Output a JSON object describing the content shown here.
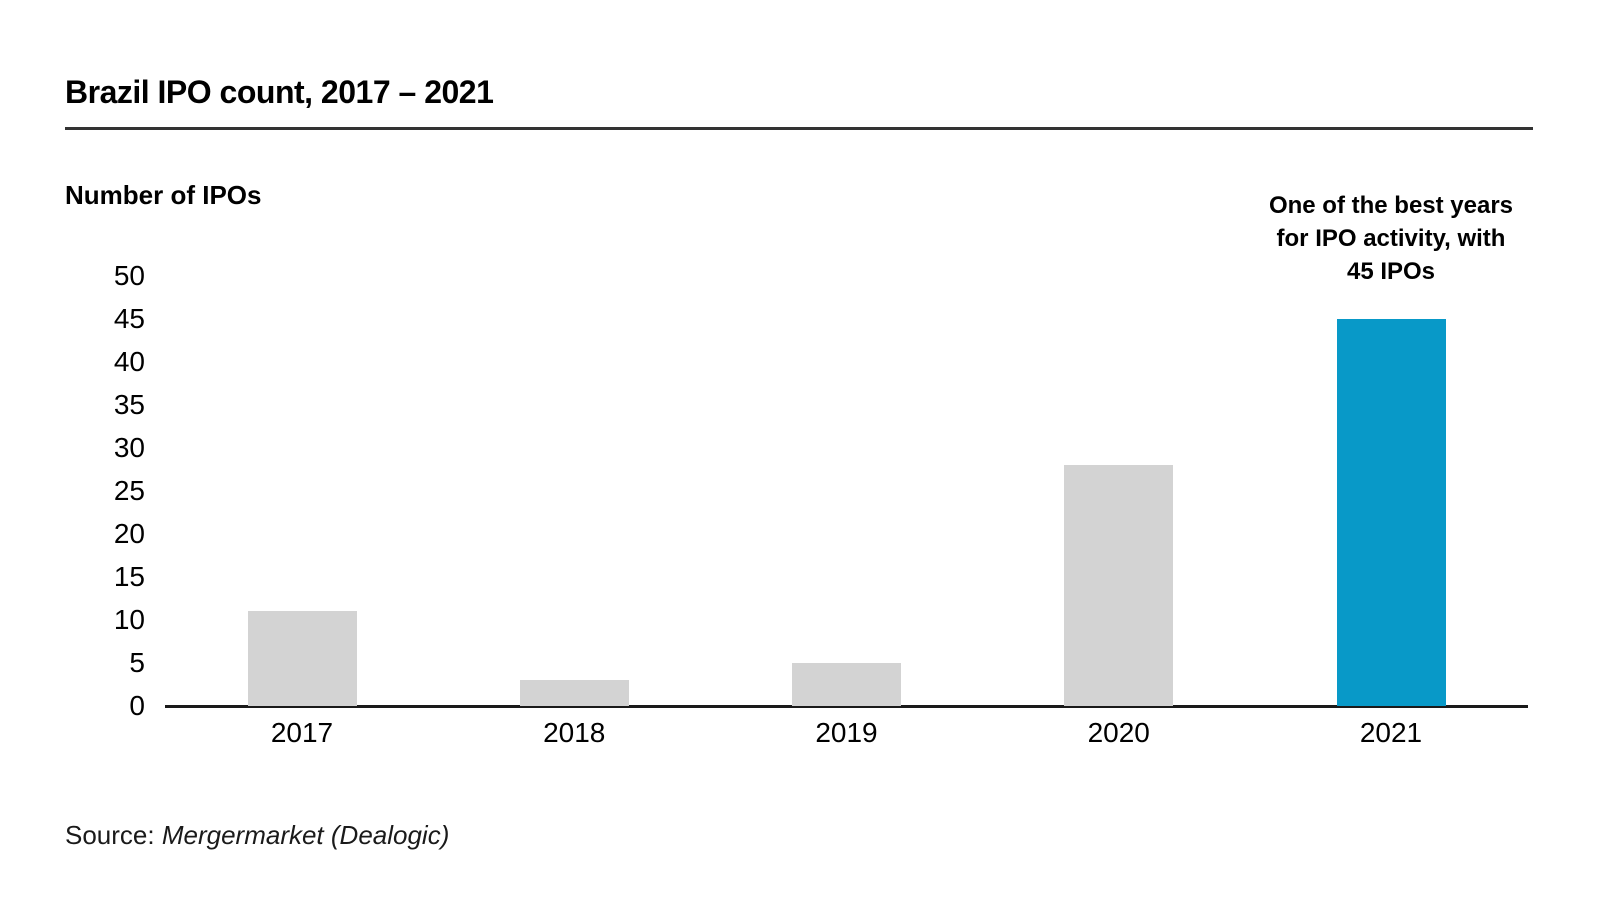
{
  "header": {
    "title": "Brazil IPO count, 2017 – 2021"
  },
  "chart_data": {
    "type": "bar",
    "title": "Brazil IPO count, 2017 – 2021",
    "ylabel": "Number of IPOs",
    "xlabel": "",
    "categories": [
      "2017",
      "2018",
      "2019",
      "2020",
      "2021"
    ],
    "values": [
      11,
      3,
      5,
      28,
      45
    ],
    "ylim": [
      0,
      50
    ],
    "yticks": [
      0,
      5,
      10,
      15,
      20,
      25,
      30,
      35,
      40,
      45,
      50
    ],
    "grid": false,
    "legend": "none",
    "highlight_index": 4,
    "colors": {
      "bar_default": "#d3d3d3",
      "bar_highlight": "#0899c8",
      "axis": "#1a1a1a",
      "rule": "#333333",
      "text": "#000000"
    },
    "annotation": {
      "text": "One of the best years for IPO activity, with 45 IPOs",
      "lines": [
        "One of the best years",
        "for IPO activity, with",
        "45 IPOs"
      ],
      "target_category": "2021"
    }
  },
  "footer": {
    "source_label": "Source:",
    "source_value": "Mergermarket (Dealogic)"
  }
}
